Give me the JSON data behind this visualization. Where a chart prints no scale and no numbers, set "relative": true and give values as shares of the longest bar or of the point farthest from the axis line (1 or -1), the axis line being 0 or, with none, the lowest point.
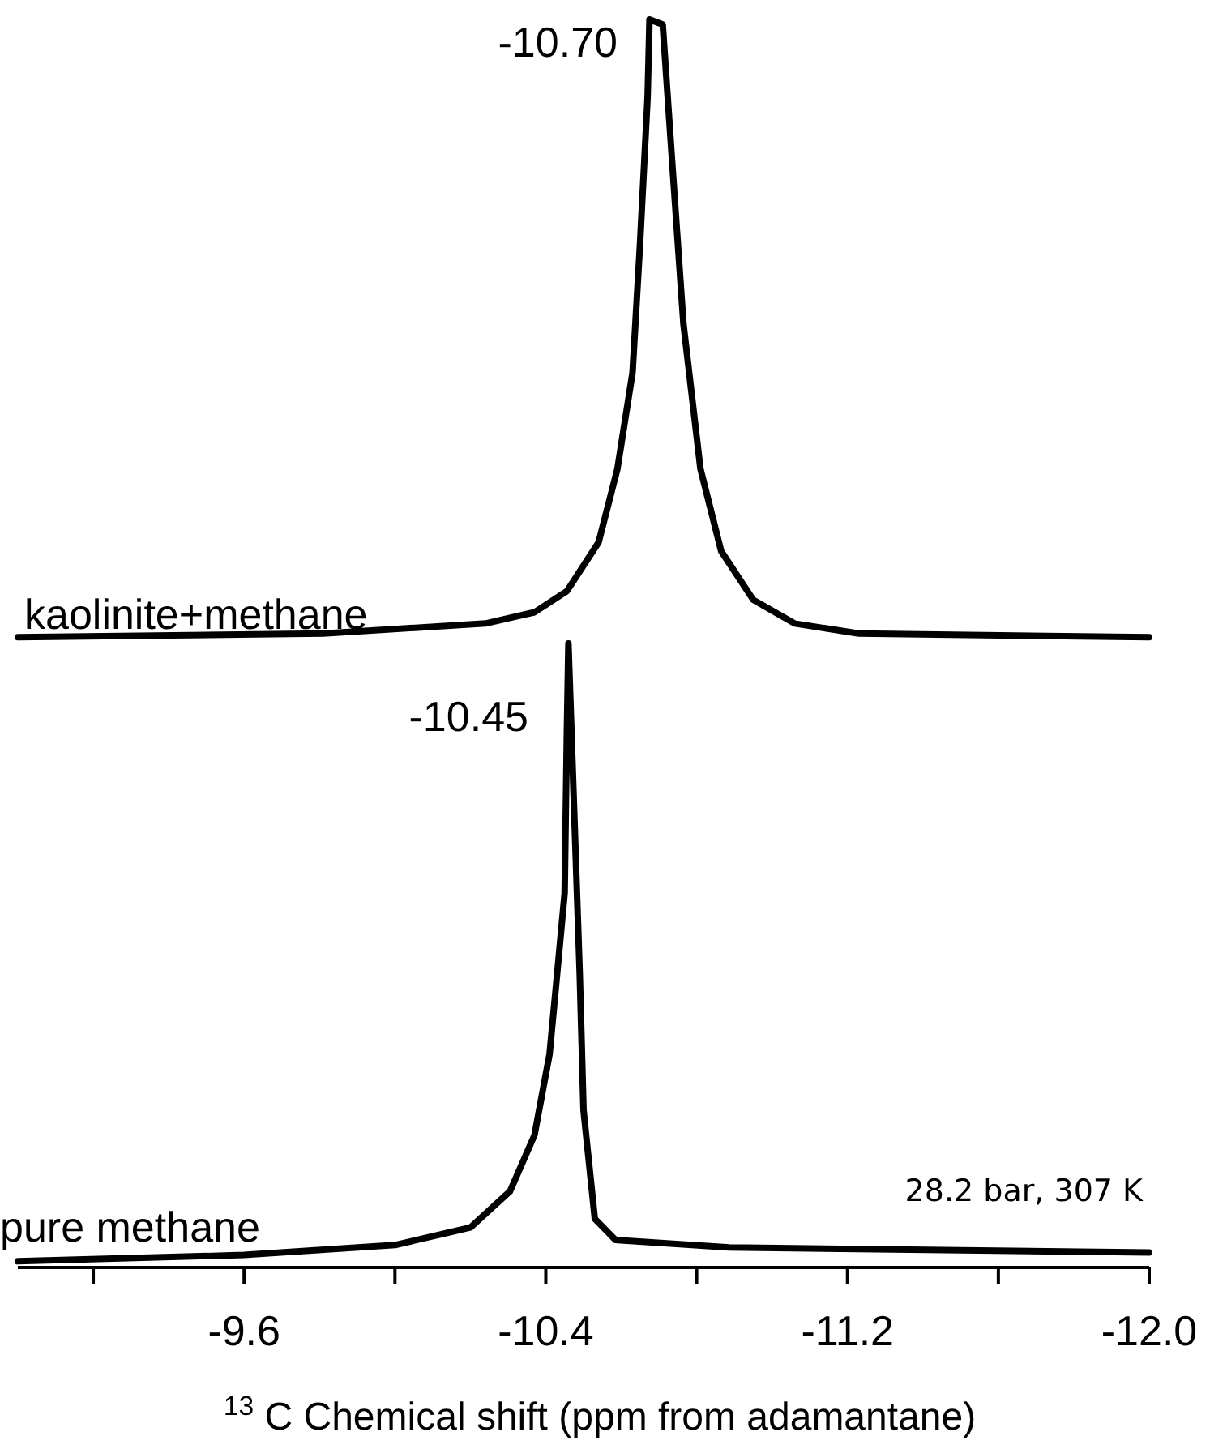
{
  "chart_data": {
    "type": "line",
    "relative": true,
    "xlabel": "$^{13}$ C Chemical shift (ppm from adamantane)",
    "xlim": [
      -9.0,
      -12.0
    ],
    "xticks": [
      {
        "value": -9.2,
        "label": null
      },
      -9.6,
      {
        "value": -10.0,
        "label": null
      },
      -10.4,
      {
        "value": -10.8,
        "label": null
      },
      -11.2,
      {
        "value": -11.6,
        "label": null
      },
      {
        "value": -12.0,
        "label": "-12.0"
      }
    ],
    "tick_labels": "x",
    "grid": false,
    "annotations": [
      "-10.70",
      "-10.45",
      "28.2 bar, 307 K"
    ],
    "series": [
      {
        "name": "kaolinite+methane",
        "color": "#000000",
        "x": [
          -9.0,
          -9.81,
          -10.24,
          -10.37,
          -10.456,
          -10.54,
          -10.59,
          -10.63,
          -10.65,
          -10.67,
          -10.675,
          -10.71,
          -10.735,
          -10.765,
          -10.81,
          -10.865,
          -10.95,
          -11.06,
          -11.23,
          -12.0
        ],
        "values": [
          0.505,
          0.508,
          0.516,
          0.525,
          0.542,
          0.581,
          0.64,
          0.717,
          0.821,
          0.938,
          1.0,
          0.996,
          0.886,
          0.756,
          0.64,
          0.574,
          0.535,
          0.516,
          0.508,
          0.505
        ]
      },
      {
        "name": "pure methane",
        "color": "#000000",
        "x": [
          -9.0,
          -9.6,
          -10.0,
          -10.2,
          -10.305,
          -10.37,
          -10.41,
          -10.43,
          -10.45,
          -10.456,
          -10.46,
          -10.49,
          -10.5,
          -10.53,
          -10.585,
          -10.886,
          -12.0
        ],
        "values": [
          0.005,
          0.01,
          0.018,
          0.032,
          0.061,
          0.106,
          0.171,
          0.235,
          0.3,
          0.43,
          0.5,
          0.235,
          0.126,
          0.039,
          0.022,
          0.016,
          0.012
        ]
      }
    ]
  }
}
